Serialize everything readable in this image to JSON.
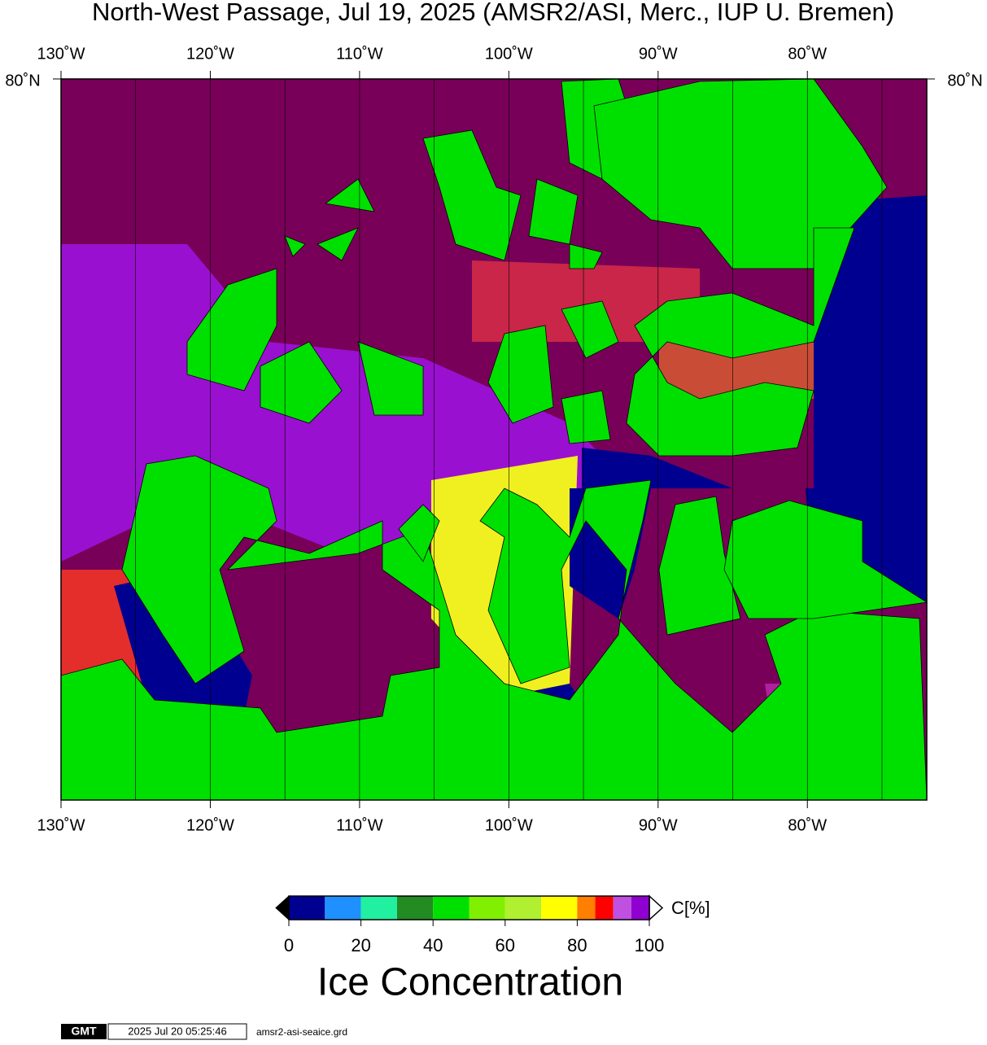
{
  "title": "North-West Passage, Jul 19, 2025 (AMSR2/ASI, Merc., IUP U. Bremen)",
  "map": {
    "lon_range": [
      -130,
      -72
    ],
    "lon_ticks": [
      {
        "value": -130,
        "label": "130˚W"
      },
      {
        "value": -120,
        "label": "120˚W"
      },
      {
        "value": -110,
        "label": "110˚W"
      },
      {
        "value": -100,
        "label": "100˚W"
      },
      {
        "value": -90,
        "label": "90˚W"
      },
      {
        "value": -80,
        "label": "80˚W"
      }
    ],
    "lon_grid": [
      -125,
      -120,
      -115,
      -110,
      -105,
      -100,
      -95,
      -90,
      -85,
      -80,
      -75
    ],
    "lat_top_label": "80˚N"
  },
  "colorbar": {
    "range": [
      0,
      100
    ],
    "ticks": [
      0,
      20,
      40,
      60,
      80,
      100
    ],
    "bins": [
      0,
      10,
      20,
      30,
      40,
      50,
      60,
      70,
      80,
      85,
      90,
      95,
      100
    ],
    "colors": [
      "#000090",
      "#1e90ff",
      "#20f0a0",
      "#228b22",
      "#00e000",
      "#80f000",
      "#b0f030",
      "#ffff00",
      "#ff7f00",
      "#ff0000",
      "#c050e0",
      "#9000d0"
    ],
    "unit": "C[%]",
    "title": "Ice Concentration"
  },
  "footer": {
    "logo": "GMT",
    "timestamp": "2025 Jul 20 05:25:46",
    "file": "amsr2-asi-seaice.grd"
  }
}
